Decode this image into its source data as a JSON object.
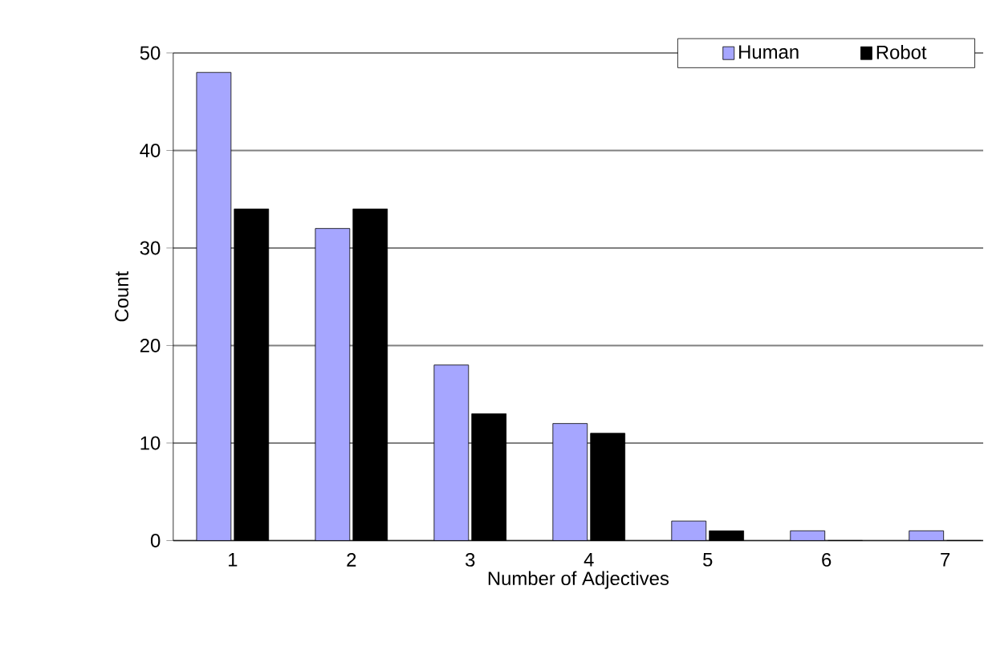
{
  "chart_data": {
    "type": "bar",
    "xlabel": "Number of Adjectives",
    "ylabel": "Count",
    "categories": [
      "1",
      "2",
      "3",
      "4",
      "5",
      "6",
      "7"
    ],
    "series": [
      {
        "name": "Human",
        "color": "#a6a6ff",
        "values": [
          48,
          32,
          18,
          12,
          2,
          1,
          1
        ]
      },
      {
        "name": "Robot",
        "color": "#000000",
        "values": [
          34,
          34,
          13,
          11,
          1,
          0,
          0
        ]
      }
    ],
    "ylim": [
      0,
      50
    ],
    "yticks": [
      0,
      10,
      20,
      30,
      40,
      50
    ],
    "grid": "y",
    "legend": "top right"
  }
}
